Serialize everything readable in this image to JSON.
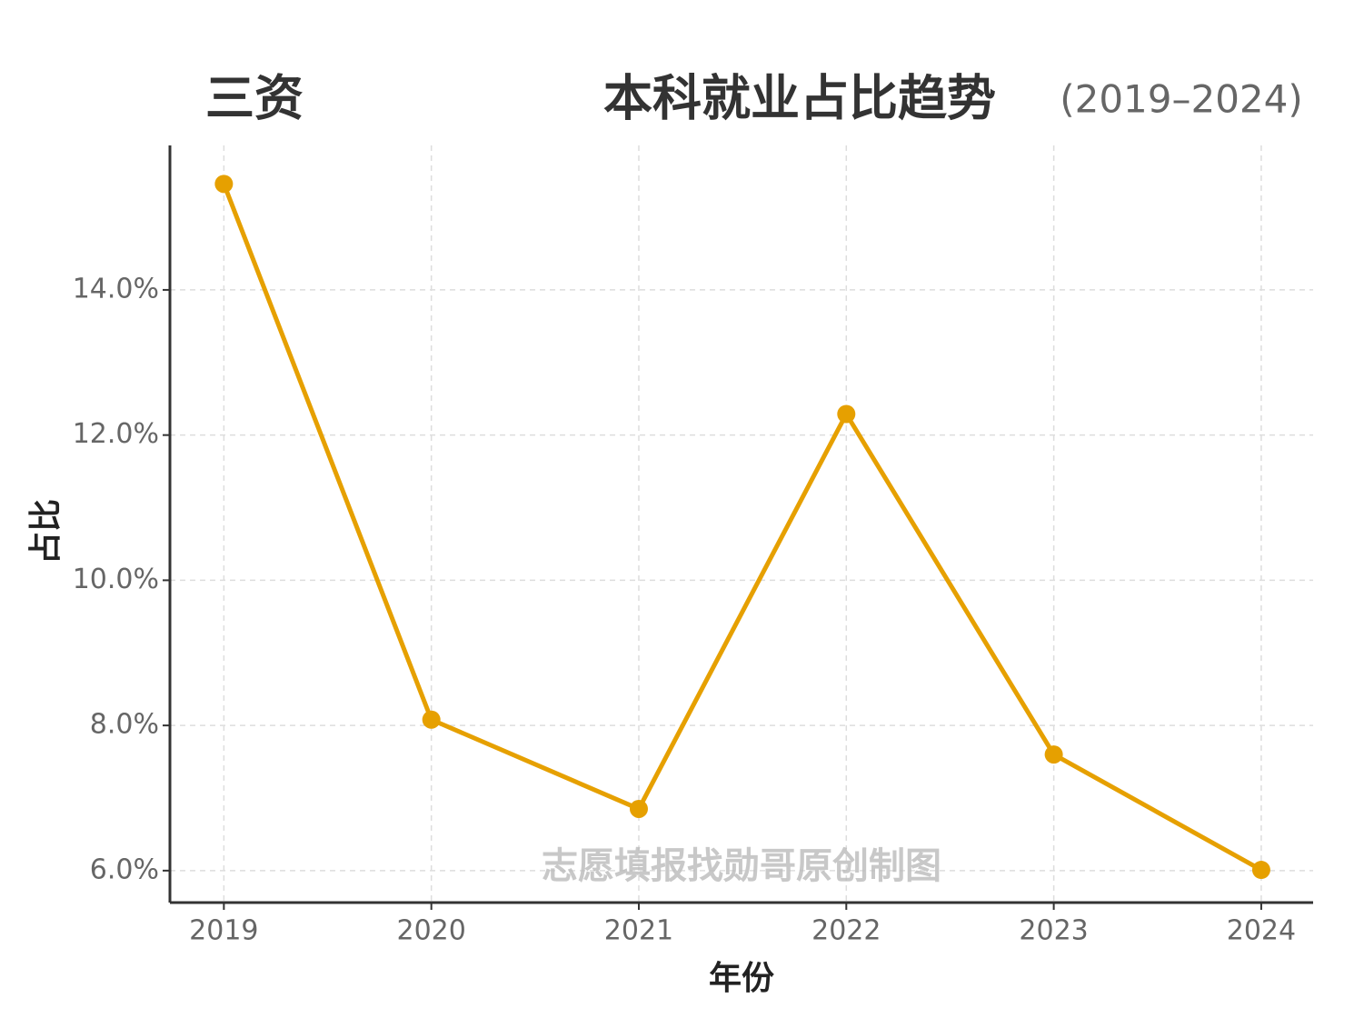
{
  "chart_data": {
    "type": "line",
    "title": "本科就业占比趋势",
    "subtitle": "(2019–2024)",
    "label": "三资",
    "watermark": "志愿填报找勋哥原创制图",
    "x_label": "年份",
    "y_label": "占比",
    "x": [
      2019,
      2020,
      2021,
      2022,
      2023,
      2024
    ],
    "values": [
      15.46,
      8.08,
      6.85,
      12.29,
      7.6,
      6.01
    ],
    "color": "#e6a000",
    "xlim": [
      2018.74,
      2024.25
    ],
    "xticks": [
      2019,
      2020,
      2021,
      2022,
      2023,
      2024
    ],
    "ylim": [
      5.56,
      15.99
    ],
    "yticks": [
      {
        "value": 6,
        "label": "6.0%"
      },
      {
        "value": 8,
        "label": "8.0%"
      },
      {
        "value": 10,
        "label": "10.0%"
      },
      {
        "value": 12,
        "label": "12.0%"
      },
      {
        "value": 14,
        "label": "14.0%"
      }
    ],
    "grid": true
  }
}
